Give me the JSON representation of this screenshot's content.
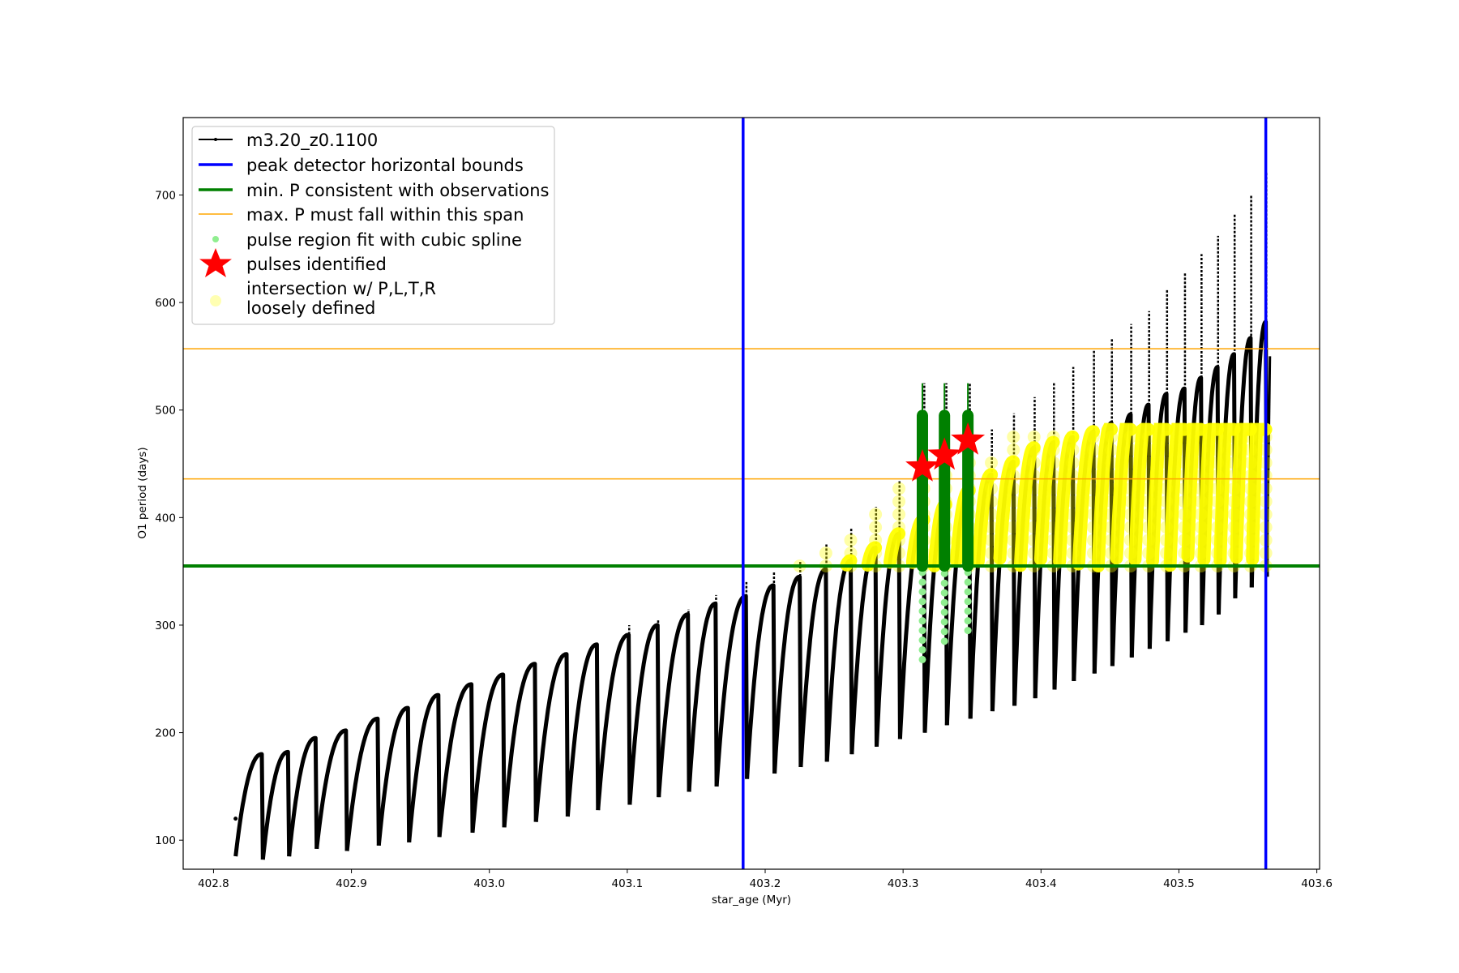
{
  "chart_data": {
    "type": "line",
    "title": "",
    "xlabel": "star_age (Myr)",
    "ylabel": "O1 period (days)",
    "xlim": [
      402.778,
      403.602
    ],
    "ylim": [
      73,
      772
    ],
    "grid": false,
    "legend_placement": "upper-left",
    "xticks": [
      "402.8",
      "402.9",
      "403.0",
      "403.1",
      "403.2",
      "403.3",
      "403.4",
      "403.5",
      "403.6"
    ],
    "yticks": [
      "100",
      "200",
      "300",
      "400",
      "500",
      "600",
      "700"
    ],
    "colors": {
      "track": "#000000",
      "bounds": "#0000ff",
      "min_p": "#008000",
      "max_p": "#ffa500",
      "spline": "#90ee90",
      "pulses": "#ff0000",
      "intersection": "#ffff00"
    },
    "legend": [
      {
        "label": "m3.20_z0.1100",
        "style": "black-line-dot"
      },
      {
        "label": "peak detector horizontal bounds",
        "style": "blue-line"
      },
      {
        "label": "min. P consistent with observations",
        "style": "green-line"
      },
      {
        "label": "max. P must fall within this span",
        "style": "orange-line"
      },
      {
        "label": "pulse region fit with cubic spline",
        "style": "lightgreen-dot"
      },
      {
        "label": "pulses identified",
        "style": "red-star"
      },
      {
        "label_lines": [
          "intersection w/ P,L,T,R",
          "loosely defined"
        ],
        "style": "yellow-dot"
      }
    ],
    "peak_detector_bounds": [
      403.184,
      403.563
    ],
    "min_period": 355,
    "max_period_span": [
      436,
      557
    ],
    "track_start": {
      "age": 402.816,
      "period": 85
    },
    "track_end": {
      "age": 403.566,
      "period": 550
    },
    "pulses": {
      "drop_age": [
        402.835,
        402.854,
        402.874,
        402.896,
        402.919,
        402.941,
        402.963,
        402.987,
        403.01,
        403.033,
        403.056,
        403.078,
        403.101,
        403.122,
        403.144,
        403.164,
        403.186,
        403.206,
        403.225,
        403.244,
        403.262,
        403.28,
        403.297,
        403.315,
        403.331,
        403.348,
        403.364,
        403.38,
        403.395,
        403.409,
        403.423,
        403.438,
        403.451,
        403.465,
        403.478,
        403.491,
        403.504,
        403.516,
        403.528,
        403.54,
        403.552,
        403.563
      ],
      "peak": [
        180,
        182,
        195,
        202,
        213,
        223,
        235,
        245,
        254,
        264,
        273,
        282,
        291,
        300,
        310,
        320,
        327,
        337,
        345,
        352,
        360,
        372,
        385,
        398,
        412,
        425,
        440,
        452,
        465,
        470,
        475,
        480,
        488,
        496,
        505,
        515,
        520,
        530,
        540,
        552,
        567,
        582
      ],
      "trough": [
        82,
        85,
        92,
        90,
        95,
        98,
        103,
        107,
        112,
        117,
        122,
        128,
        133,
        140,
        145,
        150,
        157,
        162,
        168,
        173,
        180,
        187,
        194,
        200,
        207,
        213,
        220,
        225,
        232,
        240,
        248,
        255,
        262,
        270,
        278,
        285,
        293,
        300,
        310,
        325,
        335,
        345
      ],
      "spike": [
        180,
        182,
        195,
        202,
        213,
        223,
        235,
        245,
        254,
        264,
        273,
        282,
        300,
        305,
        315,
        328,
        340,
        350,
        360,
        375,
        390,
        410,
        435,
        525,
        525,
        525,
        482,
        497,
        512,
        525,
        540,
        555,
        567,
        580,
        592,
        612,
        627,
        645,
        662,
        682,
        700,
        722
      ]
    },
    "spline_regions": [
      {
        "age": 403.314,
        "top": 495,
        "spike": 525,
        "low": 268
      },
      {
        "age": 403.33,
        "top": 495,
        "spike": 525,
        "low": 285
      },
      {
        "age": 403.347,
        "top": 495,
        "spike": 525,
        "low": 295
      }
    ],
    "identified_pulses": [
      {
        "age": 403.314,
        "period": 447
      },
      {
        "age": 403.33,
        "period": 458
      },
      {
        "age": 403.347,
        "period": 472
      }
    ],
    "intersection_cap": 482
  }
}
